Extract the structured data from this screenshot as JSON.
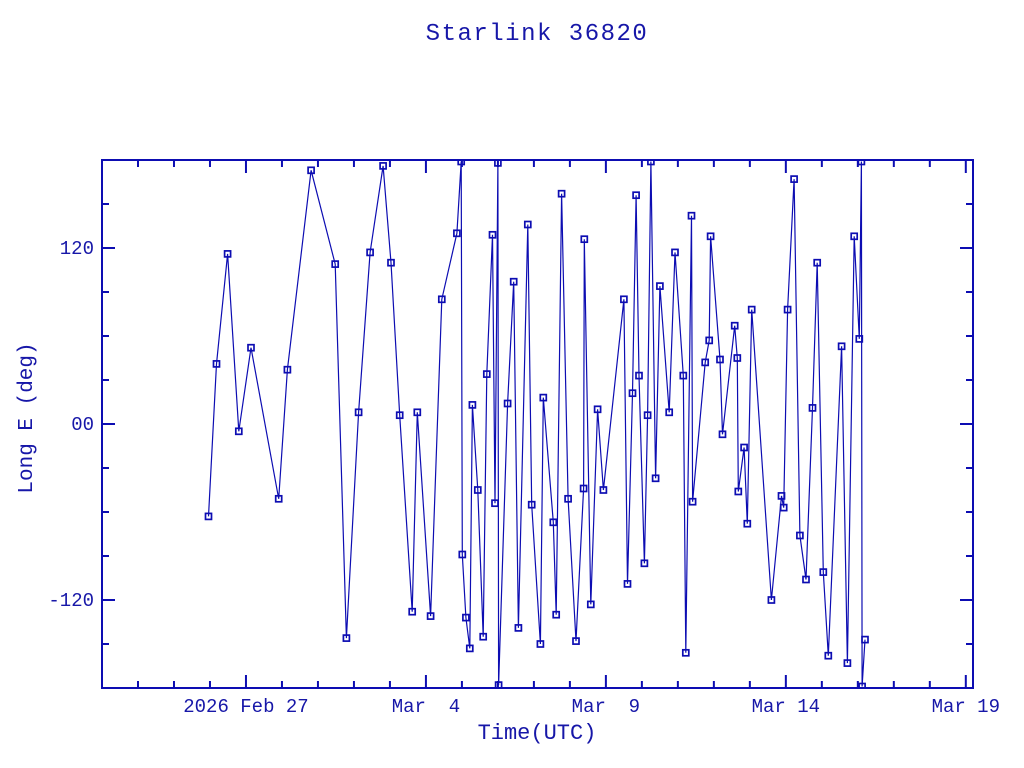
{
  "colors": {
    "plot_blue": "#0d0db2",
    "text_blue": "#1717a8",
    "background": "#ffffff"
  },
  "chart_data": {
    "type": "line",
    "title": "Starlink 36820",
    "xlabel": "Time(UTC)",
    "ylabel": "Long E (deg)",
    "x_unit_days_since": "2026 Feb 23 00:00 UTC",
    "xlim": [
      0,
      24.2
    ],
    "ylim": [
      -180,
      180
    ],
    "x_major_ticks": [
      {
        "t": 4,
        "label": "2026 Feb 27"
      },
      {
        "t": 9,
        "label": "Mar  4"
      },
      {
        "t": 14,
        "label": "Mar  9"
      },
      {
        "t": 19,
        "label": "Mar 14"
      },
      {
        "t": 24,
        "label": "Mar 19"
      }
    ],
    "x_minor_step_days": 1,
    "y_major_ticks": [
      {
        "v": 120,
        "label": "120"
      },
      {
        "v": 0,
        "label": "00"
      },
      {
        "v": -120,
        "label": "-120"
      }
    ],
    "y_minor_step": 30,
    "grid": false,
    "legend": "none",
    "marker": "open-square",
    "line_style": "solid",
    "series": [
      {
        "name": "Starlink 36820 sub-satellite longitude (deg East)",
        "points": [
          [
            2.96,
            -63
          ],
          [
            3.18,
            41
          ],
          [
            3.49,
            116
          ],
          [
            3.8,
            -5
          ],
          [
            4.14,
            52
          ],
          [
            4.91,
            -51
          ],
          [
            5.15,
            37
          ],
          [
            5.81,
            173
          ],
          [
            6.48,
            109
          ],
          [
            6.79,
            -146
          ],
          [
            7.13,
            8
          ],
          [
            7.45,
            117
          ],
          [
            7.81,
            176
          ],
          [
            8.03,
            110
          ],
          [
            8.27,
            6
          ],
          [
            8.62,
            -128
          ],
          [
            8.76,
            8
          ],
          [
            9.13,
            -131
          ],
          [
            9.44,
            85
          ],
          [
            9.86,
            130
          ],
          [
            9.98,
            179
          ],
          [
            10.01,
            -89
          ],
          [
            10.11,
            -132
          ],
          [
            10.22,
            -153
          ],
          [
            10.29,
            13
          ],
          [
            10.44,
            -45
          ],
          [
            10.59,
            -145
          ],
          [
            10.69,
            34
          ],
          [
            10.85,
            129
          ],
          [
            10.92,
            -54
          ],
          [
            11.0,
            178
          ],
          [
            11.02,
            -178
          ],
          [
            11.27,
            14
          ],
          [
            11.44,
            97
          ],
          [
            11.57,
            -139
          ],
          [
            11.83,
            136
          ],
          [
            11.94,
            -55
          ],
          [
            12.18,
            -150
          ],
          [
            12.26,
            18
          ],
          [
            12.54,
            -67
          ],
          [
            12.62,
            -130
          ],
          [
            12.77,
            157
          ],
          [
            12.95,
            -51
          ],
          [
            13.17,
            -148
          ],
          [
            13.38,
            -44
          ],
          [
            13.4,
            126
          ],
          [
            13.58,
            -123
          ],
          [
            13.77,
            10
          ],
          [
            13.93,
            -45
          ],
          [
            14.5,
            85
          ],
          [
            14.6,
            -109
          ],
          [
            14.74,
            21
          ],
          [
            14.84,
            156
          ],
          [
            14.92,
            33
          ],
          [
            15.07,
            -95
          ],
          [
            15.16,
            6
          ],
          [
            15.25,
            179
          ],
          [
            15.38,
            -37
          ],
          [
            15.5,
            94
          ],
          [
            15.76,
            8
          ],
          [
            15.92,
            117
          ],
          [
            16.15,
            33
          ],
          [
            16.22,
            -156
          ],
          [
            16.38,
            142
          ],
          [
            16.41,
            -53
          ],
          [
            16.76,
            42
          ],
          [
            16.87,
            57
          ],
          [
            16.91,
            128
          ],
          [
            17.17,
            44
          ],
          [
            17.24,
            -7
          ],
          [
            17.58,
            67
          ],
          [
            17.65,
            45
          ],
          [
            17.68,
            -46
          ],
          [
            17.84,
            -16
          ],
          [
            17.93,
            -68
          ],
          [
            18.05,
            78
          ],
          [
            18.6,
            -120
          ],
          [
            18.88,
            -49
          ],
          [
            18.94,
            -57
          ],
          [
            19.05,
            78
          ],
          [
            19.23,
            167
          ],
          [
            19.39,
            -76
          ],
          [
            19.56,
            -106
          ],
          [
            19.74,
            11
          ],
          [
            19.87,
            110
          ],
          [
            20.04,
            -101
          ],
          [
            20.18,
            -158
          ],
          [
            20.55,
            53
          ],
          [
            20.71,
            -163
          ],
          [
            20.9,
            128
          ],
          [
            21.04,
            58
          ],
          [
            21.1,
            179
          ],
          [
            21.12,
            -179
          ],
          [
            21.2,
            -147
          ]
        ]
      }
    ]
  }
}
